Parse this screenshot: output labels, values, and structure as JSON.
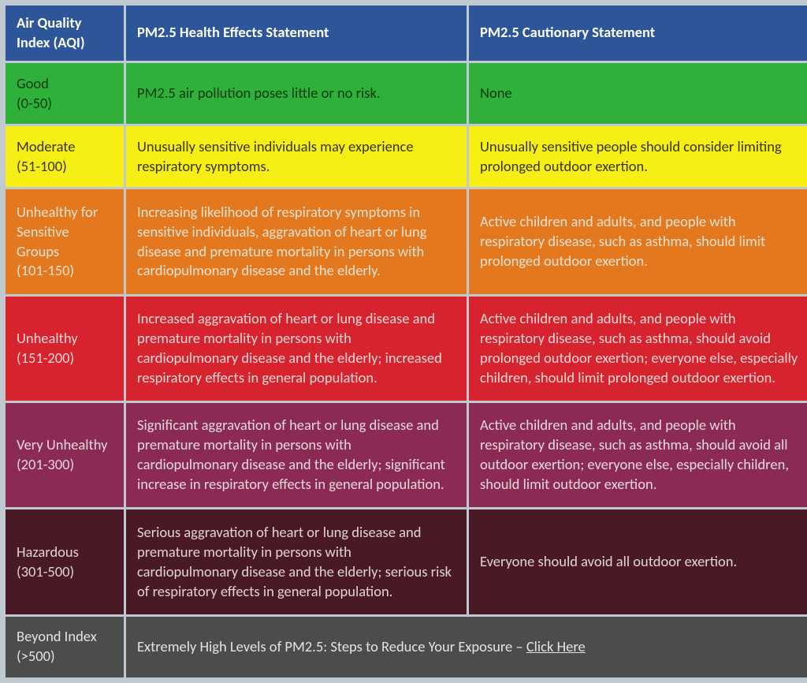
{
  "table": {
    "type": "table",
    "columns": [
      "Air Quality Index (AQI)",
      "PM2.5 Health Effects Statement",
      "PM2.5 Cautionary Statement"
    ],
    "header_bg": "#2d5699",
    "header_fg": "#ffffff",
    "border_color": "#2d5699",
    "body_font_size": 18.5,
    "rows": [
      {
        "aqi_label": "Good",
        "aqi_range": "(0-50)",
        "health": "PM2.5 air pollution poses little or no risk.",
        "caution": "None",
        "bg": "#2fb03a",
        "fg": "#0b3a10"
      },
      {
        "aqi_label": "Moderate",
        "aqi_range": "(51-100)",
        "health": "Unusually sensitive individuals may experience respiratory symptoms.",
        "caution": "Unusually sensitive people should consider limiting prolonged outdoor exertion.",
        "bg": "#f6ef16",
        "fg": "#3a3306"
      },
      {
        "aqi_label": "Unhealthy for Sensitive Groups",
        "aqi_range": "(101-150)",
        "health": "Increasing likelihood of respiratory symptoms in sensitive individuals, aggravation of heart or lung disease and premature mortality in persons with cardiopulmonary disease and the elderly.",
        "caution": "Active children and adults, and people with respiratory disease, such as asthma, should limit prolonged outdoor exertion.",
        "bg": "#e4781e",
        "fg": "#f0e2d2"
      },
      {
        "aqi_label": "Unhealthy",
        "aqi_range": "(151-200)",
        "health": "Increased aggravation of heart or lung disease and premature mortality in persons with cardiopulmonary disease and the elderly; increased respiratory effects in general population.",
        "caution": "Active children and adults, and people with respiratory disease, such as asthma, should avoid prolonged outdoor exertion; everyone else, especially children, should limit prolonged outdoor exertion.",
        "bg": "#d6232d",
        "fg": "#f3d6d8"
      },
      {
        "aqi_label": "Very Unhealthy",
        "aqi_range": "(201-300)",
        "health": "Significant aggravation of heart or lung disease and premature mortality in persons with cardiopulmonary disease and the elderly; significant increase in respiratory effects in general population.",
        "caution": "Active children and adults, and people with respiratory disease, such as asthma, should avoid all outdoor exertion; everyone else, especially children, should limit outdoor exertion.",
        "bg": "#8b2a52",
        "fg": "#e8d8df"
      },
      {
        "aqi_label": "Hazardous",
        "aqi_range": "(301-500)",
        "health": "Serious aggravation of heart or lung disease and premature mortality in persons with cardiopulmonary disease and the elderly; serious risk of respiratory effects in general population.",
        "caution": "Everyone should avoid all outdoor exertion.",
        "bg": "#4a1926",
        "fg": "#e0d2d6"
      },
      {
        "aqi_label": "Beyond Index",
        "aqi_range": "(>500)",
        "merged_text": "Extremely High Levels of PM2.5: Steps to Reduce Your Exposure – ",
        "link_text": "Click Here",
        "bg": "#4b4d4d",
        "fg": "#e2e3e3"
      }
    ]
  }
}
